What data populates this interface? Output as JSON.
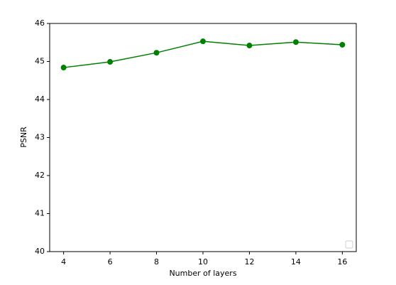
{
  "chart_data": {
    "type": "line",
    "xlabel": "Number of layers",
    "ylabel": "PSNR",
    "x": [
      4,
      6,
      8,
      10,
      12,
      14,
      16
    ],
    "values": [
      44.84,
      44.99,
      45.23,
      45.53,
      45.42,
      45.51,
      45.44
    ],
    "color": "#008000",
    "xlim": [
      3.4,
      16.6
    ],
    "xticks": [
      4,
      6,
      8,
      10,
      12,
      14,
      16
    ],
    "ylim": [
      40,
      46
    ],
    "yticks": [
      40,
      41,
      42,
      43,
      44,
      45,
      46
    ],
    "legend": "lower right"
  }
}
